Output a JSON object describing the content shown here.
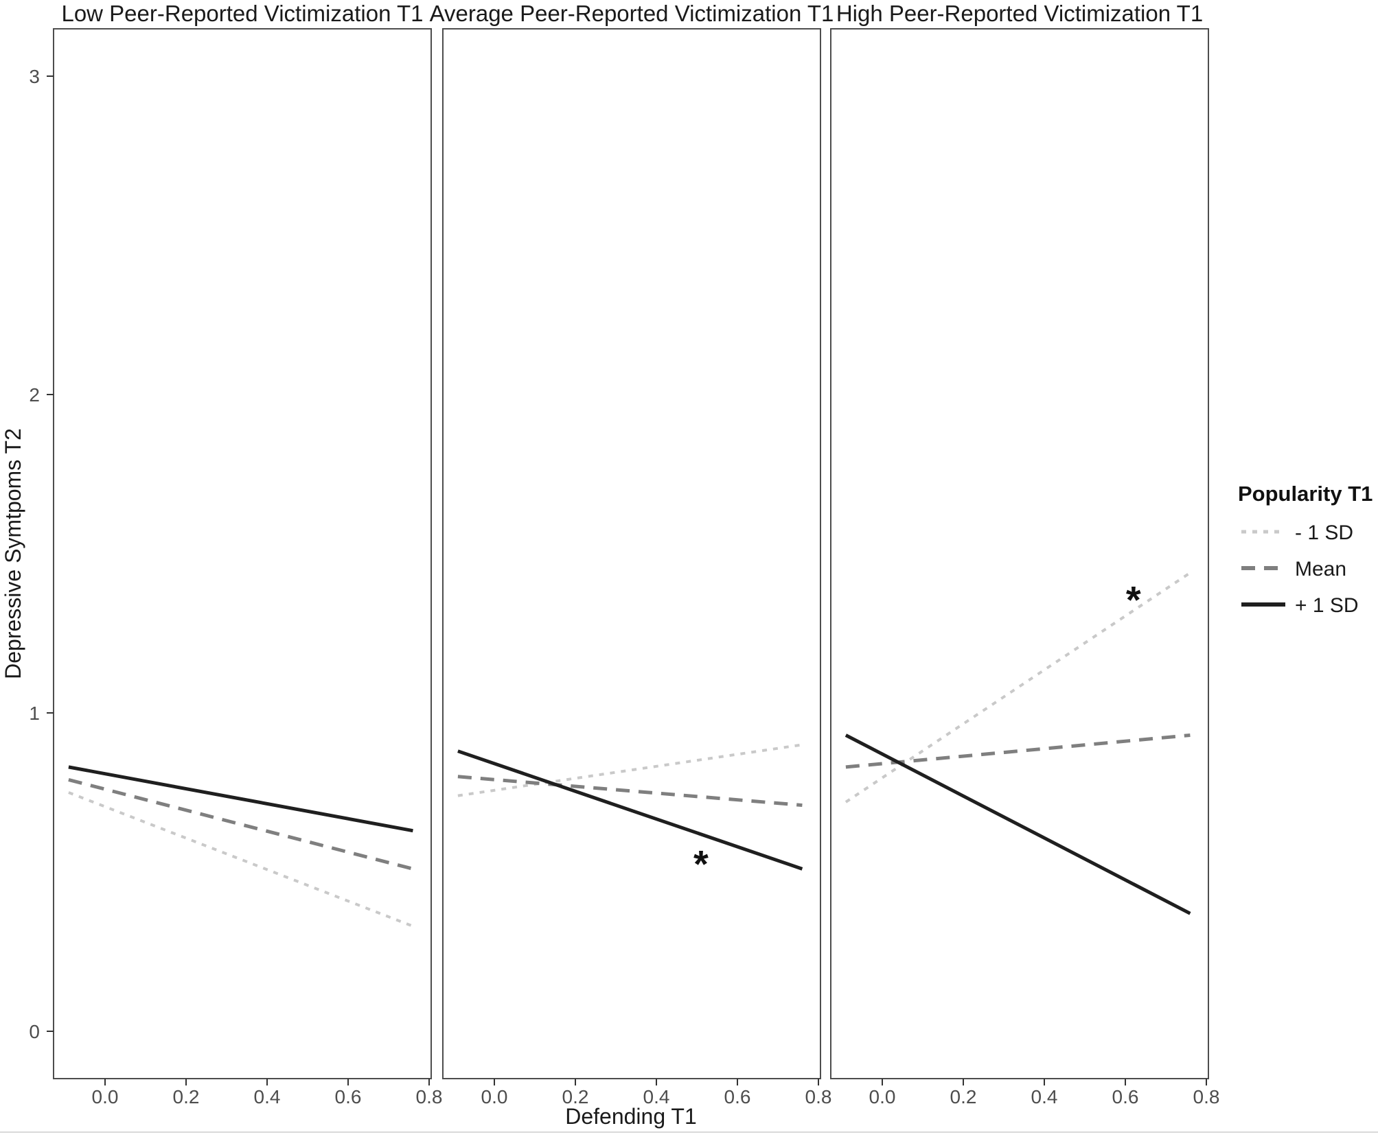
{
  "figure": {
    "legend": {
      "title": "Popularity T1",
      "entries": [
        {
          "label": "- 1 SD"
        },
        {
          "label": "Mean"
        },
        {
          "label": "+ 1 SD"
        }
      ]
    }
  },
  "chart_data": {
    "type": "line",
    "xlabel": "Defending T1",
    "ylabel": "Depressive Symtpoms T2",
    "x_ticks": [
      0.0,
      0.2,
      0.4,
      0.6,
      0.8
    ],
    "x_tick_labels": [
      "0.0",
      "0.2",
      "0.4",
      "0.6",
      "0.8"
    ],
    "y_ticks": [
      0,
      1,
      2,
      3
    ],
    "y_tick_labels": [
      "0",
      "1",
      "2",
      "3"
    ],
    "xlim": [
      -0.127,
      0.808
    ],
    "ylim": [
      -0.15,
      3.15
    ],
    "grid": "off",
    "legend_title": "Popularity T1",
    "legend_position": "right",
    "series_styles": [
      {
        "name": "- 1 SD",
        "color": "#c9c9c9",
        "dash": "7 9",
        "width": 4
      },
      {
        "name": "Mean",
        "color": "#7f7f7f",
        "dash": "20 13",
        "width": 5
      },
      {
        "name": "+ 1 SD",
        "color": "#1f1f1f",
        "dash": "",
        "width": 5
      }
    ],
    "annotation_color": "#111111",
    "facets": [
      {
        "title": "Low Peer-Reported Victimization T1",
        "series": [
          {
            "name": "- 1 SD",
            "x": [
              -0.09,
              0.76
            ],
            "y": [
              0.75,
              0.33
            ]
          },
          {
            "name": "Mean",
            "x": [
              -0.09,
              0.76
            ],
            "y": [
              0.79,
              0.51
            ]
          },
          {
            "name": "+ 1 SD",
            "x": [
              -0.09,
              0.76
            ],
            "y": [
              0.83,
              0.63
            ]
          }
        ],
        "annotations": []
      },
      {
        "title": "Average Peer-Reported Victimization T1",
        "series": [
          {
            "name": "- 1 SD",
            "x": [
              -0.09,
              0.76
            ],
            "y": [
              0.74,
              0.9
            ]
          },
          {
            "name": "Mean",
            "x": [
              -0.09,
              0.76
            ],
            "y": [
              0.8,
              0.71
            ]
          },
          {
            "name": "+ 1 SD",
            "x": [
              -0.09,
              0.76
            ],
            "y": [
              0.88,
              0.51
            ]
          }
        ],
        "annotations": [
          {
            "text": "*",
            "x": 0.51,
            "y": 0.54
          }
        ]
      },
      {
        "title": "High Peer-Reported Victimization T1",
        "series": [
          {
            "name": "- 1 SD",
            "x": [
              -0.09,
              0.76
            ],
            "y": [
              0.72,
              1.44
            ]
          },
          {
            "name": "Mean",
            "x": [
              -0.09,
              0.76
            ],
            "y": [
              0.83,
              0.93
            ]
          },
          {
            "name": "+ 1 SD",
            "x": [
              -0.09,
              0.76
            ],
            "y": [
              0.93,
              0.37
            ]
          }
        ],
        "annotations": [
          {
            "text": "*",
            "x": 0.62,
            "y": 1.37
          }
        ]
      }
    ]
  }
}
